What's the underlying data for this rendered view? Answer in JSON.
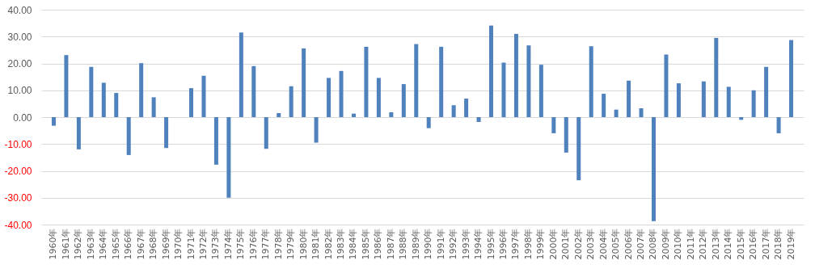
{
  "chart_data": {
    "type": "bar",
    "categories": [
      "1960年",
      "1961年",
      "1962年",
      "1963年",
      "1964年",
      "1965年",
      "1966年",
      "1967年",
      "1968年",
      "1969年",
      "1970年",
      "1971年",
      "1972年",
      "1973年",
      "1974年",
      "1975年",
      "1976年",
      "1977年",
      "1978年",
      "1979年",
      "1980年",
      "1981年",
      "1982年",
      "1983年",
      "1984年",
      "1985年",
      "1986年",
      "1987年",
      "1988年",
      "1989年",
      "1990年",
      "1991年",
      "1992年",
      "1993年",
      "1994年",
      "1995年",
      "1996年",
      "1997年",
      "1998年",
      "1999年",
      "2000年",
      "2001年",
      "2002年",
      "2003年",
      "2004年",
      "2005年",
      "2006年",
      "2007年",
      "2008年",
      "2009年",
      "2010年",
      "2011年",
      "2012年",
      "2013年",
      "2014年",
      "2015年",
      "2016年",
      "2017年",
      "2018年",
      "2019年"
    ],
    "values": [
      -3.2,
      23.1,
      -12.0,
      18.7,
      12.8,
      9.0,
      -14.1,
      20.1,
      7.4,
      -11.5,
      0,
      10.8,
      15.4,
      -17.7,
      -30.0,
      31.5,
      19.0,
      -11.8,
      1.5,
      11.5,
      25.6,
      -9.5,
      14.6,
      17.2,
      1.3,
      26.2,
      14.6,
      1.8,
      12.3,
      27.2,
      -4.1,
      26.2,
      4.4,
      6.9,
      -1.8,
      34.1,
      20.3,
      31.0,
      26.7,
      19.5,
      -6.0,
      -13.2,
      -23.5,
      26.4,
      8.7,
      2.8,
      13.6,
      3.3,
      -38.7,
      23.3,
      12.6,
      0,
      13.3,
      29.5,
      11.3,
      -1.0,
      10.0,
      18.7,
      -6.0,
      28.7
    ],
    "color": "#4f81bd",
    "ylim": [
      -40,
      40
    ],
    "yticks": [
      {
        "value": 40,
        "label": "40.00"
      },
      {
        "value": 30,
        "label": "30.00"
      },
      {
        "value": 20,
        "label": "20.00"
      },
      {
        "value": 10,
        "label": "10.00"
      },
      {
        "value": 0,
        "label": "0.00"
      },
      {
        "value": -10,
        "label": "-10.00"
      },
      {
        "value": -20,
        "label": "-20.00"
      },
      {
        "value": -30,
        "label": "-30.00"
      },
      {
        "value": -40,
        "label": "-40.00"
      }
    ],
    "grid": "y"
  }
}
